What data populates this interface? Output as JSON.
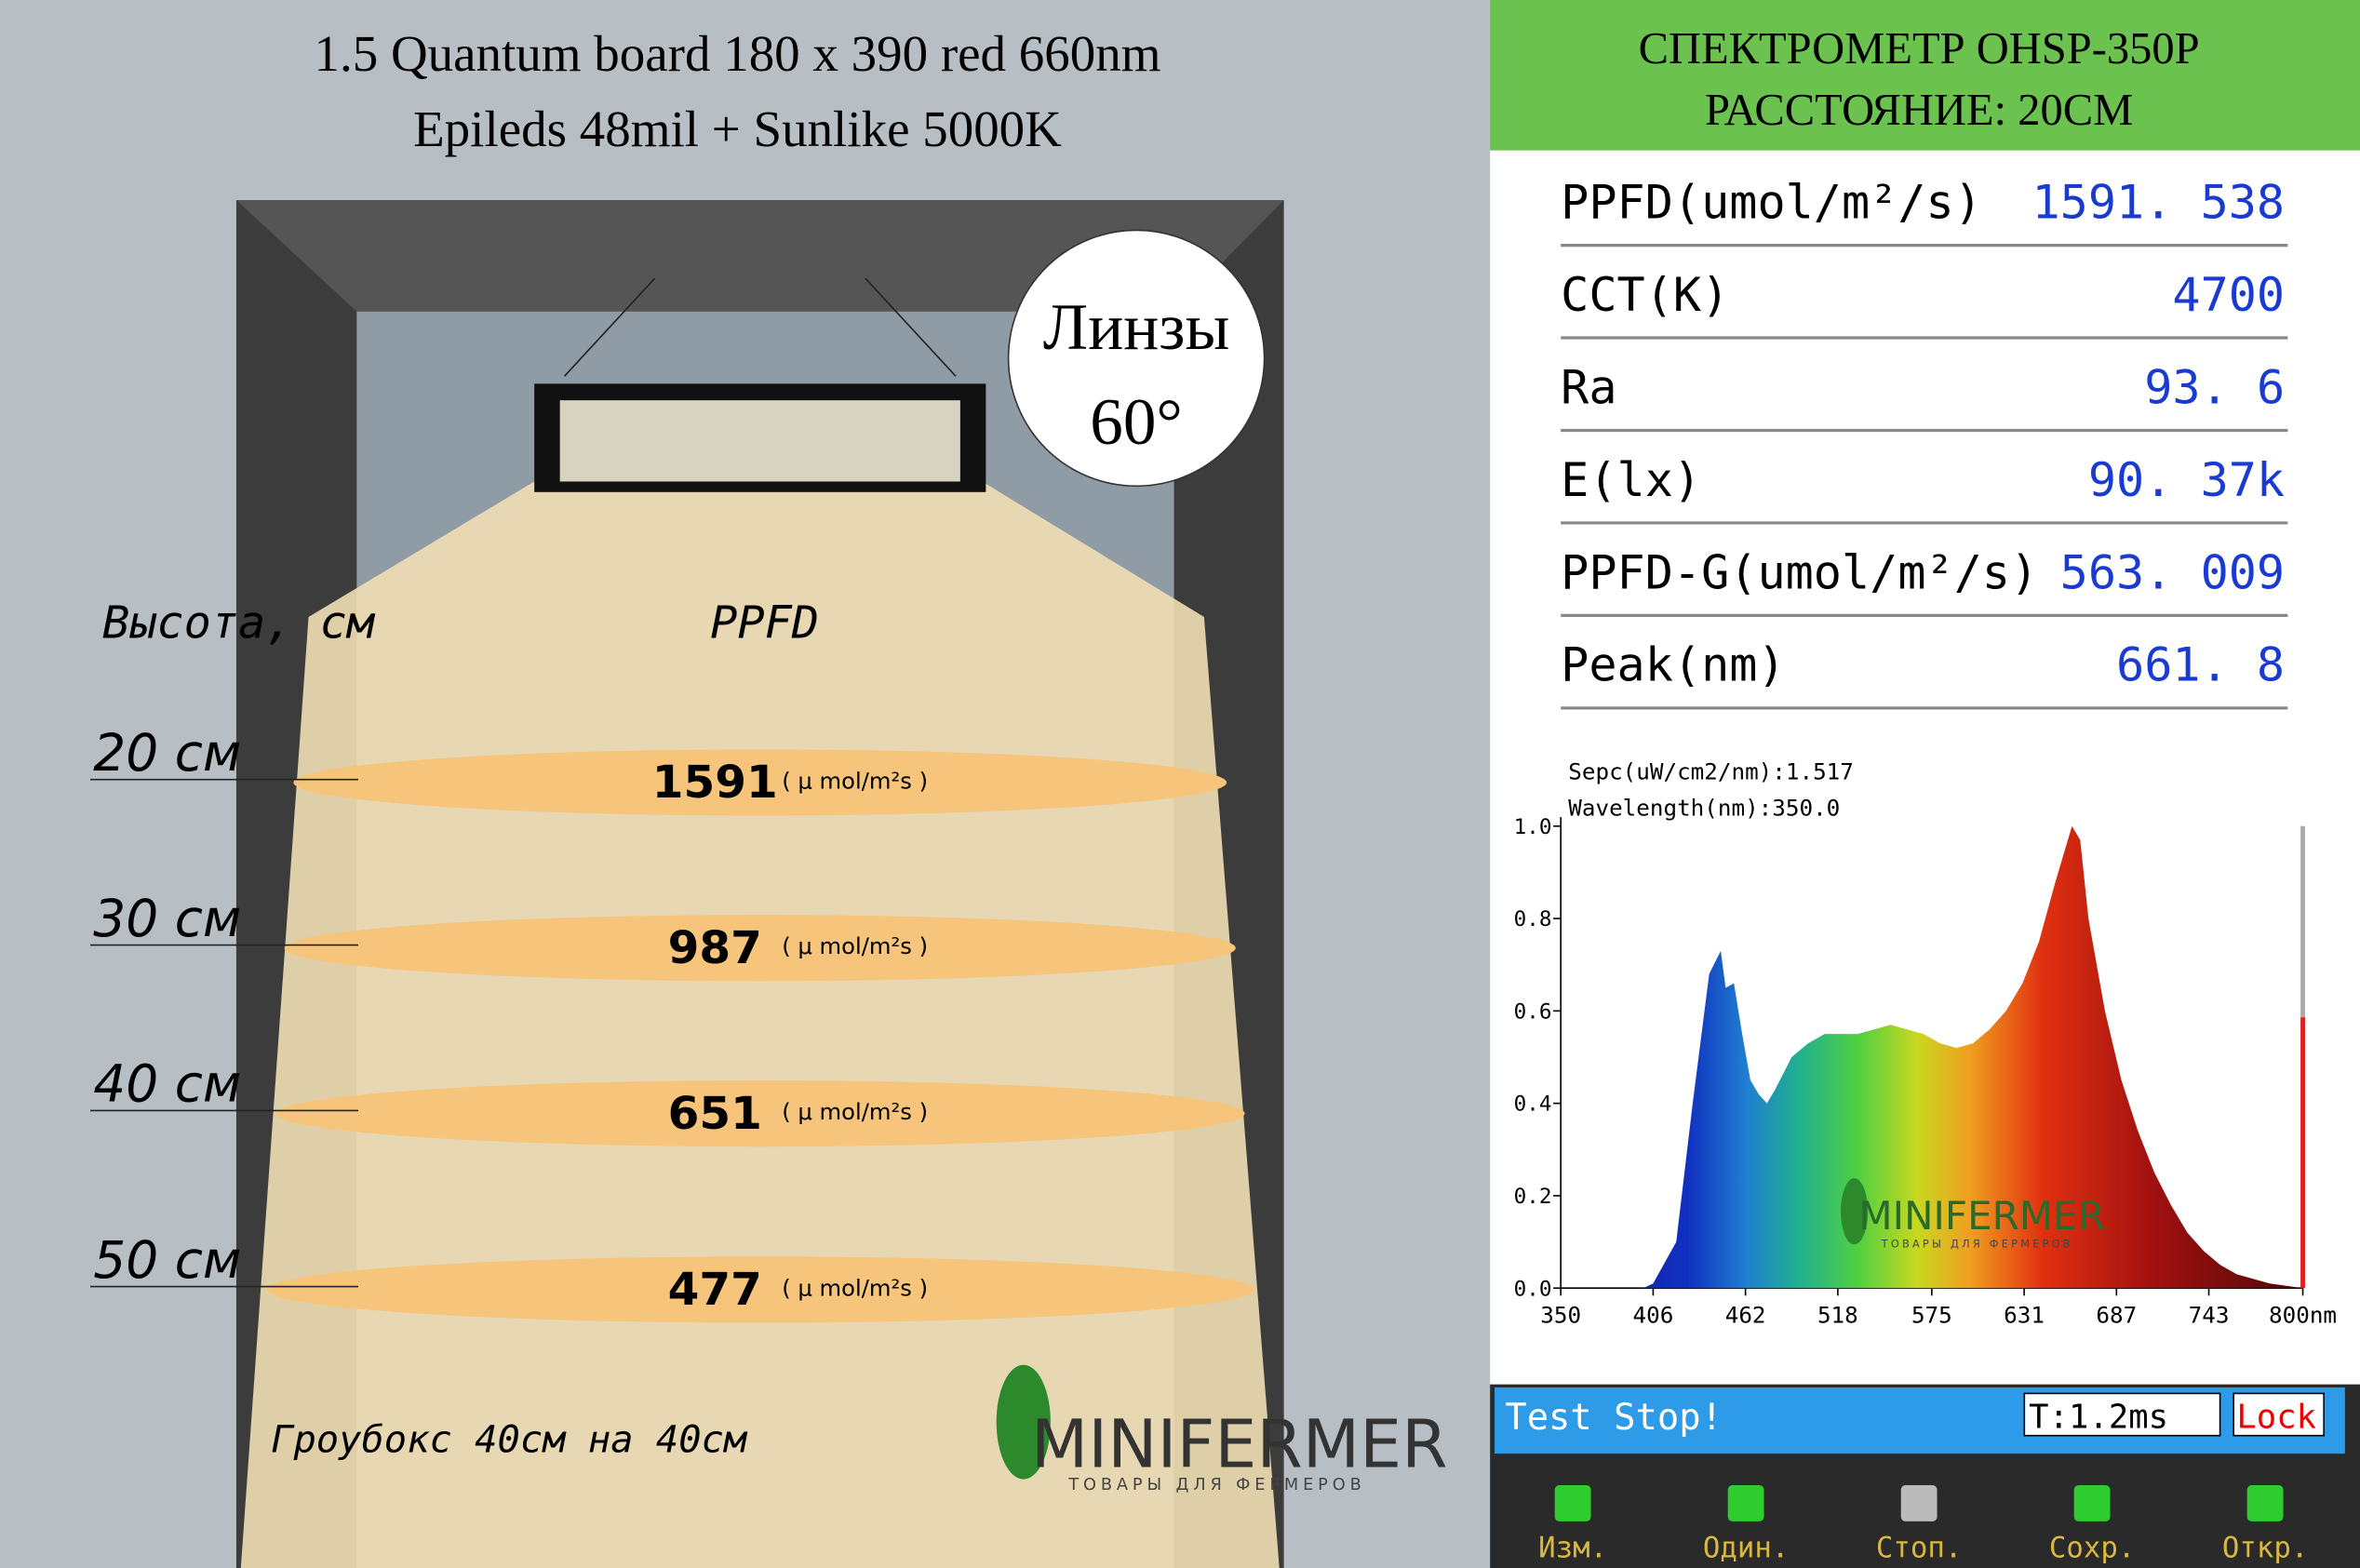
{
  "title": {
    "line1": "1.5 Quantum board 180 x 390 red 660nm",
    "line2": "Epileds 48mil + Sunlike 5000K"
  },
  "growbox": {
    "lens_line1": "Линзы",
    "lens_line2": "60°",
    "height_header": "Высота, см",
    "ppfd_header": "PPFD",
    "levels": [
      {
        "height": "20 см",
        "ppfd": 1591,
        "unit": "( μ mol/m²s )"
      },
      {
        "height": "30 см",
        "ppfd": 987,
        "unit": "( μ mol/m²s )"
      },
      {
        "height": "40 см",
        "ppfd": 651,
        "unit": "( μ mol/m²s )"
      },
      {
        "height": "50 см",
        "ppfd": 477,
        "unit": "( μ mol/m²s )"
      }
    ],
    "footer": "Гроубокс 40см на 40см",
    "logo": "MINIFERMER",
    "logo_sub": "ТОВАРЫ ДЛЯ ФЕРМЕРОВ"
  },
  "spectrometer": {
    "header1": "СПЕКТРОМЕТР OHSP-350P",
    "header2": "РАССТОЯНИЕ: 20СМ",
    "rows": [
      [
        "PPFD(umol/m²/s)",
        "1591. 538"
      ],
      [
        "CCT(K)",
        "4700"
      ],
      [
        "Ra",
        "93. 6"
      ],
      [
        "E(lx)",
        "90. 37k"
      ],
      [
        "PPFD-G(umol/m²/s)",
        "563. 009"
      ],
      [
        "Peak(nm)",
        "661. 8"
      ]
    ],
    "status": "Test Stop!",
    "time": "T:1.2ms",
    "lock": "Lock",
    "buttons": [
      "Изм.",
      "Один.",
      "Стоп.",
      "Сохр.",
      "Откр."
    ],
    "logo": "MINIFERMER",
    "logo_sub": "ТОВАРЫ ДЛЯ ФЕРМЕРОВ"
  },
  "chart_data": {
    "type": "area",
    "info1": "Sepc(uW/cm2/nm):1.517",
    "info2": "Wavelength(nm):350.0",
    "x": [
      350,
      400,
      406,
      420,
      430,
      440,
      447,
      450,
      455,
      460,
      465,
      470,
      475,
      480,
      490,
      500,
      510,
      520,
      530,
      540,
      550,
      560,
      570,
      580,
      590,
      600,
      610,
      620,
      630,
      640,
      650,
      660,
      665,
      670,
      680,
      690,
      700,
      710,
      720,
      730,
      740,
      750,
      760,
      780,
      800
    ],
    "values": [
      0,
      0,
      0.01,
      0.1,
      0.4,
      0.68,
      0.73,
      0.65,
      0.66,
      0.55,
      0.45,
      0.42,
      0.4,
      0.43,
      0.5,
      0.53,
      0.55,
      0.55,
      0.55,
      0.56,
      0.57,
      0.56,
      0.55,
      0.53,
      0.52,
      0.53,
      0.56,
      0.6,
      0.66,
      0.75,
      0.88,
      1.0,
      0.97,
      0.8,
      0.6,
      0.45,
      0.34,
      0.25,
      0.18,
      0.12,
      0.08,
      0.05,
      0.03,
      0.01,
      0
    ],
    "xlim": [
      350,
      800
    ],
    "ylim": [
      0,
      1
    ],
    "xticks": [
      350,
      406,
      462,
      518,
      575,
      631,
      687,
      743,
      {
        "value": 800,
        "label": "800nm"
      }
    ],
    "yticks": [
      {
        "value": 0,
        "label": "0.0"
      },
      0.2,
      0.4,
      0.6,
      0.8,
      {
        "value": 1,
        "label": "1.0"
      }
    ]
  }
}
